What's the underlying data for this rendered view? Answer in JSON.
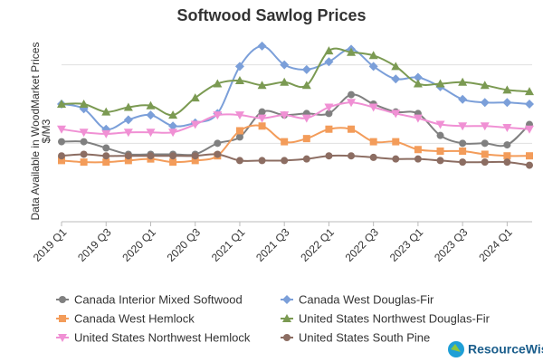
{
  "chart_data": {
    "type": "line",
    "title": "Softwood Sawlog Prices",
    "y_label": [
      "$/M3",
      "Data Available in WoodMarket Prices"
    ],
    "logo": "ResourceWise",
    "categories": [
      "2019 Q1",
      null,
      "2019 Q3",
      null,
      "2020 Q1",
      null,
      "2020 Q3",
      null,
      "2021 Q1",
      null,
      "2021 Q3",
      null,
      "2022 Q1",
      null,
      "2022 Q3",
      null,
      "2023 Q1",
      null,
      "2023 Q3",
      null,
      "2024 Q1",
      null
    ],
    "ylim": [
      0,
      120
    ],
    "yticks": [
      0,
      50,
      100
    ],
    "grid": true,
    "legend": "bottom",
    "series": [
      {
        "name": "Canada Interior Mixed Softwood",
        "color": "#808080",
        "marker": "circle",
        "values": [
          51,
          51,
          47,
          43,
          43,
          43,
          43,
          50,
          54,
          70,
          68,
          69,
          69,
          81,
          75,
          70,
          69,
          55,
          50,
          50,
          49,
          62
        ]
      },
      {
        "name": "Canada West Douglas-Fir",
        "color": "#7b9fd9",
        "marker": "diamond",
        "values": [
          75,
          72,
          59,
          65,
          68,
          61,
          63,
          69,
          99,
          112,
          100,
          97,
          102,
          110,
          99,
          91,
          92,
          86,
          78,
          76,
          76,
          75
        ]
      },
      {
        "name": "Canada West Hemlock",
        "color": "#f39c5a",
        "marker": "square",
        "values": [
          39,
          38,
          38,
          39,
          40,
          38,
          39,
          42,
          58,
          61,
          51,
          53,
          59,
          59,
          51,
          51,
          46,
          45,
          45,
          43,
          42,
          42
        ]
      },
      {
        "name": "United States Northwest Douglas-Fir",
        "color": "#7b9a52",
        "marker": "triangle-up",
        "values": [
          75,
          75,
          70,
          73,
          74,
          68,
          79,
          88,
          90,
          87,
          89,
          87,
          109,
          108,
          106,
          99,
          88,
          88,
          89,
          87,
          84,
          83
        ]
      },
      {
        "name": "United States Northwest Hemlock",
        "color": "#f090d4",
        "marker": "triangle-down",
        "values": [
          59,
          57,
          56,
          57,
          57,
          57,
          62,
          68,
          68,
          66,
          68,
          66,
          73,
          76,
          73,
          69,
          66,
          62,
          61,
          61,
          60,
          59
        ]
      },
      {
        "name": "United States South Pine",
        "color": "#8c6d62",
        "marker": "circle",
        "values": [
          42,
          43,
          42,
          42,
          42,
          42,
          42,
          43,
          39,
          39,
          39,
          40,
          42,
          42,
          41,
          40,
          40,
          39,
          38,
          38,
          38,
          36
        ]
      }
    ]
  }
}
